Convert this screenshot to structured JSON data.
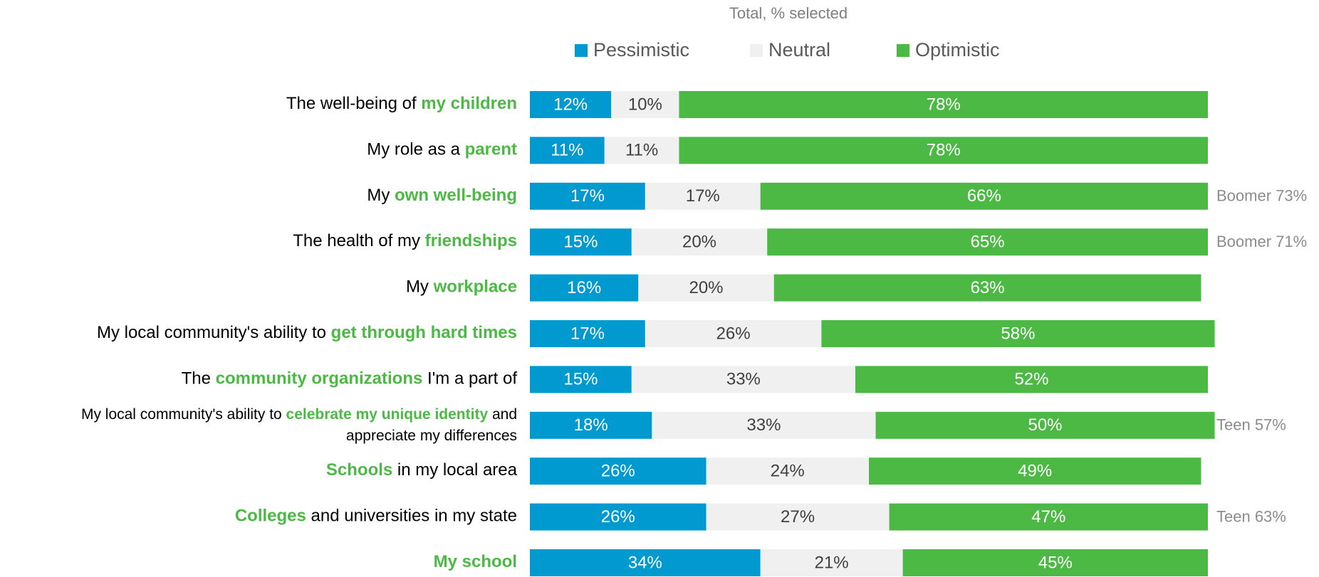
{
  "chart_data": {
    "type": "stacked_bar_horizontal",
    "title": "Total, % selected",
    "categories": [
      [
        [
          {
            "text": "The well-being of "
          },
          {
            "text": "my children",
            "highlight": true
          }
        ]
      ],
      [
        [
          {
            "text": "My role as a "
          },
          {
            "text": "parent",
            "highlight": true
          }
        ]
      ],
      [
        [
          {
            "text": "My "
          },
          {
            "text": "own well-being",
            "highlight": true
          }
        ]
      ],
      [
        [
          {
            "text": "The health of my "
          },
          {
            "text": "friendships",
            "highlight": true
          }
        ]
      ],
      [
        [
          {
            "text": "My "
          },
          {
            "text": "workplace",
            "highlight": true
          }
        ]
      ],
      [
        [
          {
            "text": "My local community's ability to "
          },
          {
            "text": "get through hard times",
            "highlight": true
          }
        ]
      ],
      [
        [
          {
            "text": "The "
          },
          {
            "text": "community organizations",
            "highlight": true
          },
          {
            "text": " I'm a part of"
          }
        ]
      ],
      [
        [
          {
            "text": "My local community's ability to "
          },
          {
            "text": "celebrate my unique identity",
            "highlight": true
          },
          {
            "text": " and"
          }
        ],
        [
          {
            "text": "appreciate my differences"
          }
        ]
      ],
      [
        [
          {
            "text": "Schools",
            "highlight": true
          },
          {
            "text": " in my local area"
          }
        ]
      ],
      [
        [
          {
            "text": "Colleges",
            "highlight": true
          },
          {
            "text": " and universities in my state"
          }
        ]
      ],
      [
        [
          {
            "text": "My school",
            "highlight": true
          }
        ]
      ]
    ],
    "highlight_color": "#4cb944",
    "series": [
      {
        "name": "Pessimistic",
        "color": "#0099d0",
        "label_color": "#ffffff",
        "values": [
          12,
          11,
          17,
          15,
          16,
          17,
          15,
          18,
          26,
          26,
          34
        ],
        "value_labels": [
          "12%",
          "11%",
          "17%",
          "15%",
          "16%",
          "17%",
          "15%",
          "18%",
          "26%",
          "26%",
          "34%"
        ]
      },
      {
        "name": "Neutral",
        "color": "#f0f0f0",
        "label_color": "#404040",
        "values": [
          10,
          11,
          17,
          20,
          20,
          26,
          33,
          33,
          24,
          27,
          21
        ],
        "value_labels": [
          "10%",
          "11%",
          "17%",
          "20%",
          "20%",
          "26%",
          "33%",
          "33%",
          "24%",
          "27%",
          "21%"
        ]
      },
      {
        "name": "Optimistic",
        "color": "#4cb944",
        "label_color": "#ffffff",
        "values": [
          78,
          78,
          66,
          65,
          63,
          58,
          52,
          50,
          49,
          47,
          45
        ],
        "value_labels": [
          "78%",
          "78%",
          "66%",
          "65%",
          "63%",
          "58%",
          "52%",
          "50%",
          "49%",
          "47%",
          "45%"
        ]
      }
    ],
    "annotations": [
      null,
      null,
      "Boomer 73%",
      "Boomer 71%",
      null,
      null,
      null,
      "Teen 57%",
      null,
      "Teen 63%",
      null
    ],
    "xlim": [
      0,
      100
    ],
    "legend": "top"
  }
}
